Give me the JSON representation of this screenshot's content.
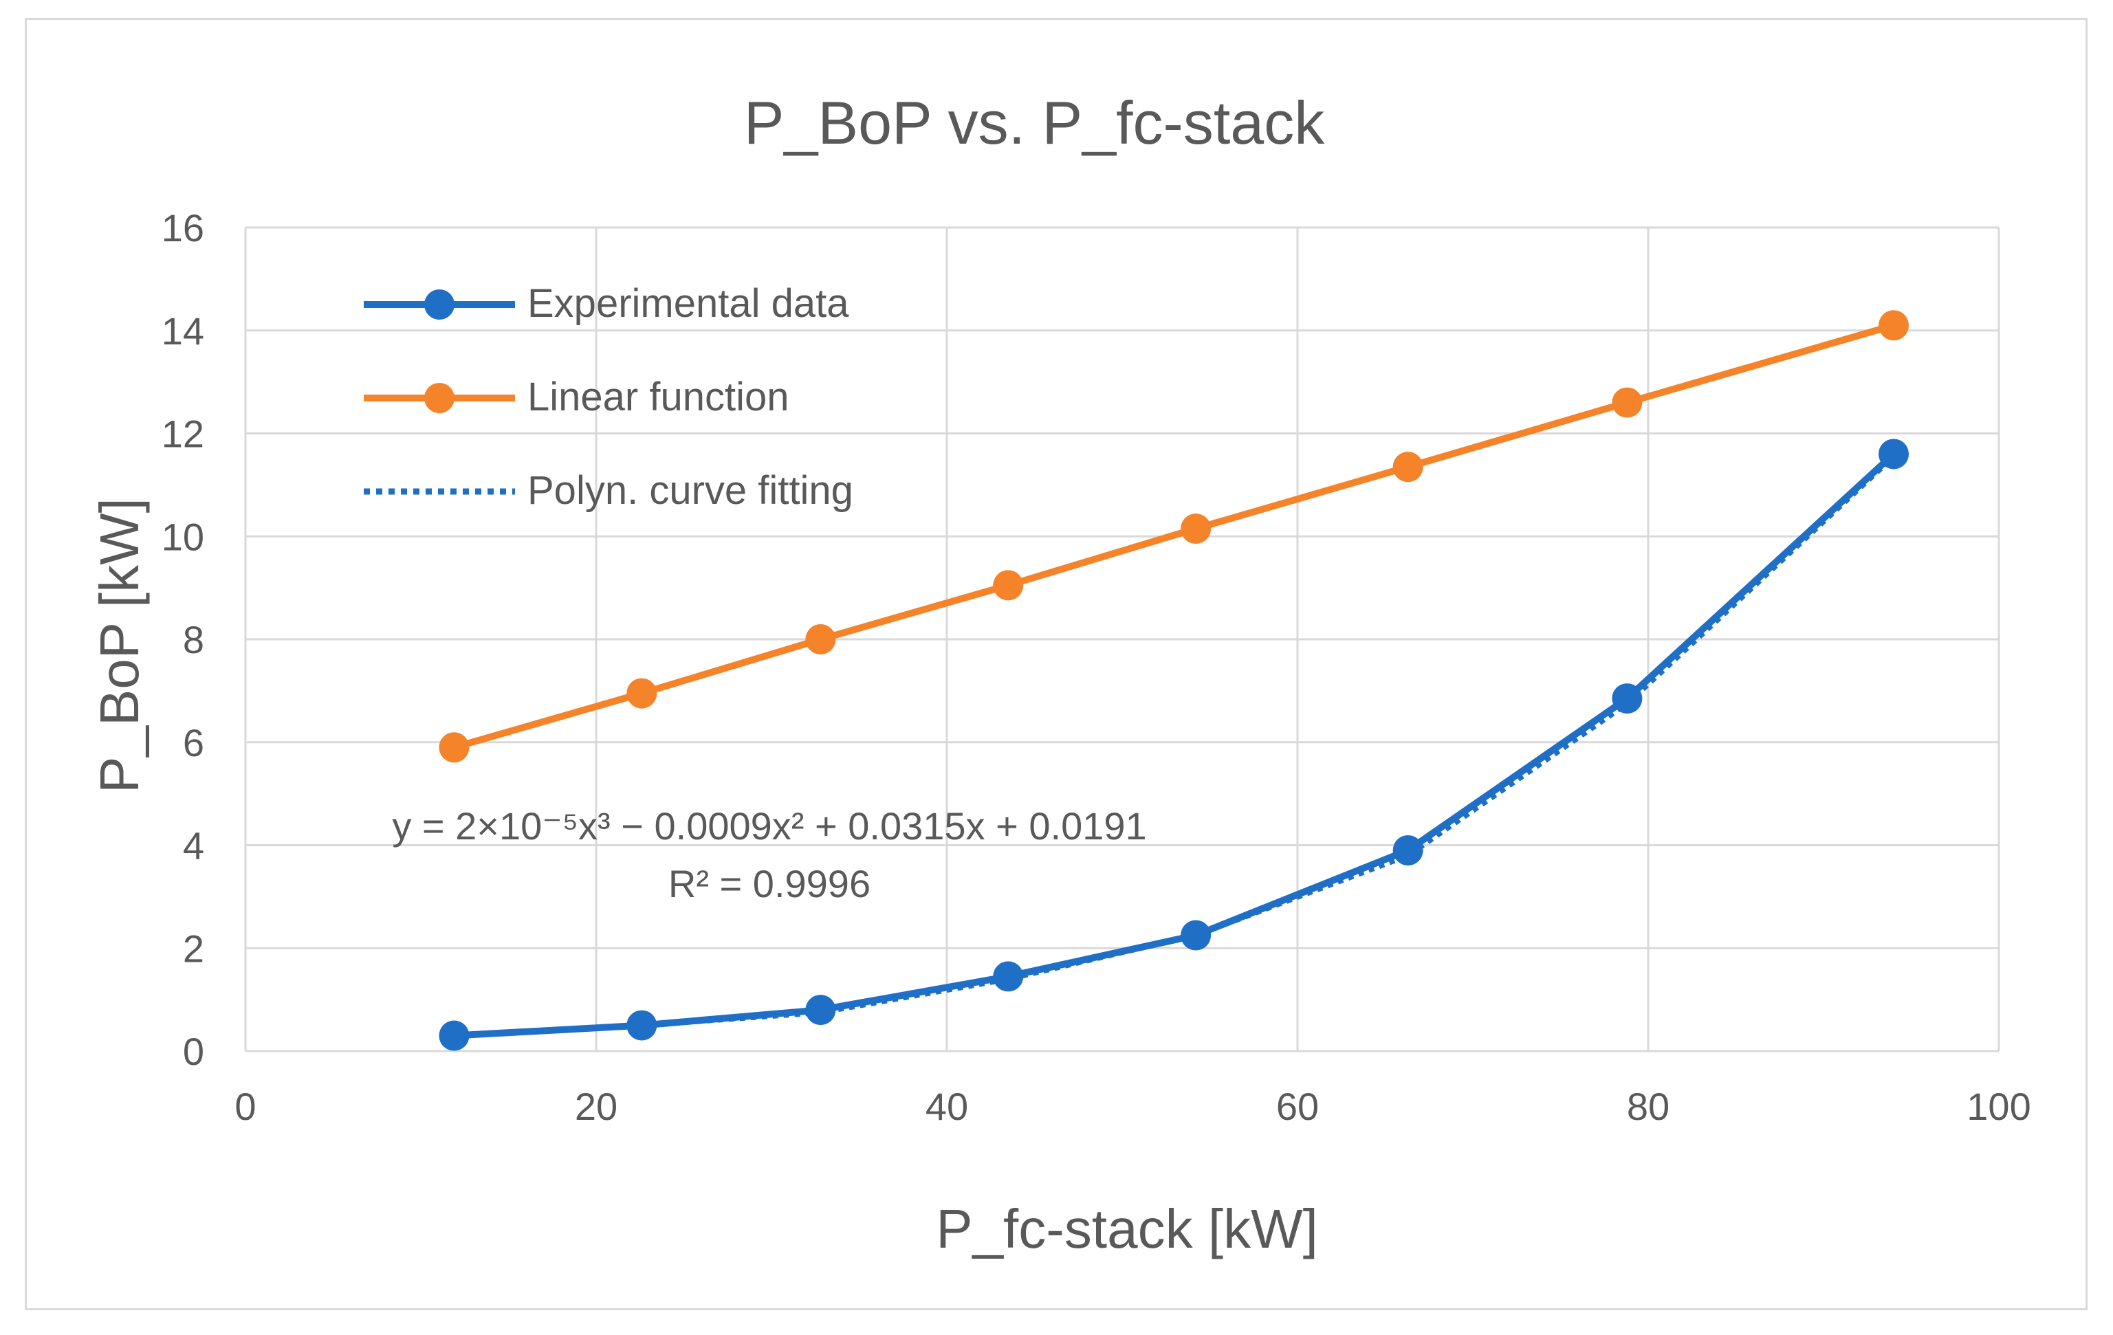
{
  "chart_data": {
    "type": "line",
    "title": "P_BoP vs. P_fc-stack",
    "xlabel": "P_fc-stack [kW]",
    "ylabel": "P_BoP [kW]",
    "xlim": [
      0,
      100
    ],
    "ylim": [
      0,
      16
    ],
    "xticks": [
      0,
      20,
      40,
      60,
      80,
      100
    ],
    "yticks": [
      0,
      2,
      4,
      6,
      8,
      10,
      12,
      14,
      16
    ],
    "grid": true,
    "legend_position": "top-left",
    "colors": {
      "experimental": "#1f6fc6",
      "linear": "#f5832a",
      "fit": "#1f6fc6",
      "grid": "#d9d9d9",
      "text": "#595959"
    },
    "series": [
      {
        "name": "Experimental data",
        "style": "solid-markers",
        "x": [
          11.9,
          22.6,
          32.8,
          43.5,
          54.2,
          66.3,
          78.8,
          94.0
        ],
        "y": [
          0.3,
          0.5,
          0.8,
          1.45,
          2.25,
          3.9,
          6.85,
          11.6
        ]
      },
      {
        "name": "Linear function",
        "style": "solid-markers",
        "x": [
          11.9,
          22.6,
          32.8,
          43.5,
          54.2,
          66.3,
          78.8,
          94.0
        ],
        "y": [
          5.9,
          6.95,
          8.0,
          9.05,
          10.15,
          11.35,
          12.6,
          14.1
        ]
      },
      {
        "name": "Polyn. curve fitting",
        "style": "dotted",
        "x": [
          11.9,
          22.6,
          32.8,
          43.5,
          54.2,
          66.3,
          78.8,
          94.0
        ],
        "y": [
          0.3,
          0.5,
          0.75,
          1.4,
          2.25,
          3.8,
          6.75,
          11.55
        ]
      }
    ],
    "annotation": {
      "equation": "y = 2×10⁻⁵x³ − 0.0009x² + 0.0315x + 0.0191",
      "r_squared": "R² = 0.9996"
    }
  }
}
